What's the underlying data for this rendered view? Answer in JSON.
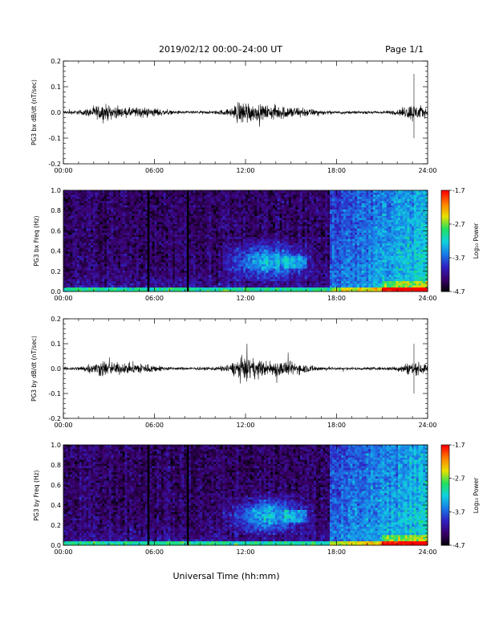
{
  "header": {
    "title": "2019/02/12  00:00–24:00 UT",
    "page": "Page 1/1"
  },
  "footer": {
    "xaxis_title": "Universal Time (hh:mm)"
  },
  "colors": {
    "trace": "#000000",
    "colormap": [
      "#000000",
      "#3a006a",
      "#3020c0",
      "#1a7ae8",
      "#10d0e0",
      "#20e060",
      "#e8e000",
      "#ff8000",
      "#ff0000"
    ]
  },
  "chart_data": [
    {
      "type": "line",
      "panel": "bx-waveform",
      "ylabel": "PG3 bx dB/dt (nT/sec)",
      "ylim": [
        -0.2,
        0.2
      ],
      "yticks": [
        "0.2",
        "0.1",
        "0.0",
        "-0.1",
        "-0.2"
      ],
      "xlim": [
        0,
        24
      ],
      "xticks": [
        "00:00",
        "06:00",
        "12:00",
        "18:00",
        "24:00"
      ],
      "grid": false,
      "series": [
        {
          "x": [
            0,
            1,
            2,
            2.5,
            3,
            4,
            5,
            6,
            7,
            8,
            9,
            10,
            11,
            11.5,
            12,
            12.5,
            13,
            14,
            15,
            16,
            17,
            18,
            19,
            20,
            21,
            22,
            22.5,
            23,
            23.5,
            24
          ],
          "amplitude": [
            0.01,
            0.012,
            0.03,
            0.05,
            0.04,
            0.025,
            0.03,
            0.025,
            0.012,
            0.008,
            0.008,
            0.01,
            0.02,
            0.06,
            0.07,
            0.05,
            0.04,
            0.04,
            0.035,
            0.025,
            0.012,
            0.008,
            0.008,
            0.008,
            0.008,
            0.015,
            0.03,
            0.05,
            0.04,
            0.02
          ],
          "max": 0.15,
          "min": -0.1
        }
      ]
    },
    {
      "type": "heatmap",
      "panel": "bx-spectrogram",
      "ylabel": "PG3 bx Freq (Hz)",
      "ylim": [
        0.0,
        1.0
      ],
      "yticks": [
        "1.0",
        "0.8",
        "0.6",
        "0.4",
        "0.2",
        "0.0"
      ],
      "xlim": [
        0,
        24
      ],
      "xticks": [
        "00:00",
        "06:00",
        "12:00",
        "18:00",
        "24:00"
      ],
      "colorbar_label": "Log₁₀ Power",
      "colorbar_ticks": [
        "-1.7",
        "-2.7",
        "-3.7",
        "-4.7"
      ],
      "crange": [
        -4.7,
        -1.7
      ],
      "data_gaps_hours": [
        5.6,
        8.2
      ]
    },
    {
      "type": "line",
      "panel": "by-waveform",
      "ylabel": "PG3 by dB/dt (nT/sec)",
      "ylim": [
        -0.2,
        0.2
      ],
      "yticks": [
        "0.2",
        "0.1",
        "0.0",
        "-0.1",
        "-0.2"
      ],
      "xlim": [
        0,
        24
      ],
      "xticks": [
        "00:00",
        "06:00",
        "12:00",
        "18:00",
        "24:00"
      ],
      "grid": false,
      "series": [
        {
          "x": [
            0,
            1,
            2,
            2.5,
            3,
            4,
            5,
            6,
            7,
            8,
            9,
            10,
            11,
            11.5,
            12,
            12.5,
            13,
            14,
            15,
            16,
            17,
            18,
            19,
            20,
            21,
            22,
            22.5,
            23,
            23.5,
            24
          ],
          "amplitude": [
            0.01,
            0.012,
            0.03,
            0.05,
            0.04,
            0.03,
            0.035,
            0.02,
            0.01,
            0.008,
            0.008,
            0.01,
            0.025,
            0.06,
            0.07,
            0.055,
            0.045,
            0.045,
            0.04,
            0.025,
            0.012,
            0.008,
            0.008,
            0.008,
            0.008,
            0.015,
            0.03,
            0.04,
            0.035,
            0.02
          ],
          "max": 0.1,
          "min": -0.1
        }
      ]
    },
    {
      "type": "heatmap",
      "panel": "by-spectrogram",
      "ylabel": "PG3 by Freq (Hz)",
      "ylim": [
        0.0,
        1.0
      ],
      "yticks": [
        "1.0",
        "0.8",
        "0.6",
        "0.4",
        "0.2",
        "0.0"
      ],
      "xlim": [
        0,
        24
      ],
      "xticks": [
        "00:00",
        "06:00",
        "12:00",
        "18:00",
        "24:00"
      ],
      "colorbar_label": "Log₁₀ Power",
      "colorbar_ticks": [
        "-1.7",
        "-2.7",
        "-3.7",
        "-4.7"
      ],
      "crange": [
        -4.7,
        -1.7
      ],
      "data_gaps_hours": [
        5.6,
        8.2
      ]
    }
  ]
}
